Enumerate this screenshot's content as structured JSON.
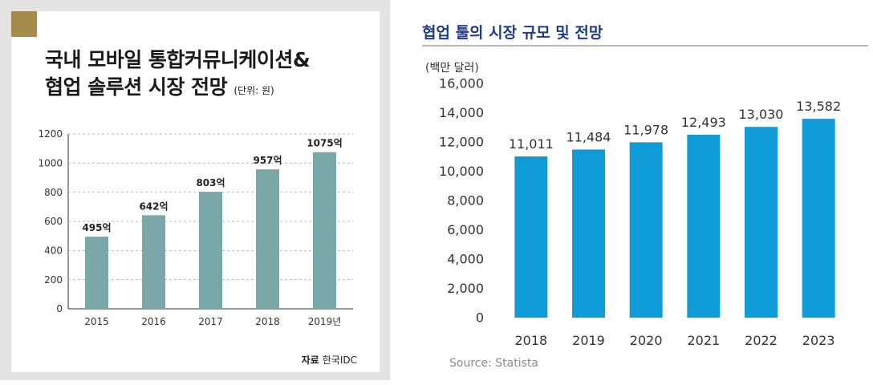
{
  "left": {
    "title_line1": "국내 모바일 통합커뮤니케이션&",
    "title_line2": "협업 솔루션 시장 전망",
    "unit": "(단위: 원)",
    "source_label": "자료",
    "source_text": "한국IDC"
  },
  "right": {
    "title": "협업 툴의 시장 규모 및 전망",
    "unit": "(백만 달러)",
    "source": "Source: Statista"
  },
  "chart_data": [
    {
      "type": "bar",
      "title": "국내 모바일 통합커뮤니케이션& 협업 솔루션 시장 전망",
      "categories": [
        "2015",
        "2016",
        "2017",
        "2018",
        "2019년"
      ],
      "values": [
        495,
        642,
        803,
        957,
        1075
      ],
      "value_labels": [
        "495억",
        "642억",
        "803억",
        "957억",
        "1075억"
      ],
      "yticks": [
        "0",
        "200",
        "400",
        "600",
        "800",
        "1000",
        "1200"
      ],
      "ylim": [
        0,
        1200
      ],
      "grid": true,
      "color": "#7aa8a8"
    },
    {
      "type": "bar",
      "title": "협업 툴의 시장 규모 및 전망",
      "categories": [
        "2018",
        "2019",
        "2020",
        "2021",
        "2022",
        "2023"
      ],
      "values": [
        11011,
        11484,
        11978,
        12493,
        13030,
        13582
      ],
      "value_labels": [
        "11,011",
        "11,484",
        "11,978",
        "12,493",
        "13,030",
        "13,582"
      ],
      "yticks": [
        "0",
        "2,000",
        "4,000",
        "6,000",
        "8,000",
        "10,000",
        "12,000",
        "14,000",
        "16,000"
      ],
      "ylim": [
        0,
        16000
      ],
      "grid": false,
      "color": "#0f9ad8"
    }
  ]
}
